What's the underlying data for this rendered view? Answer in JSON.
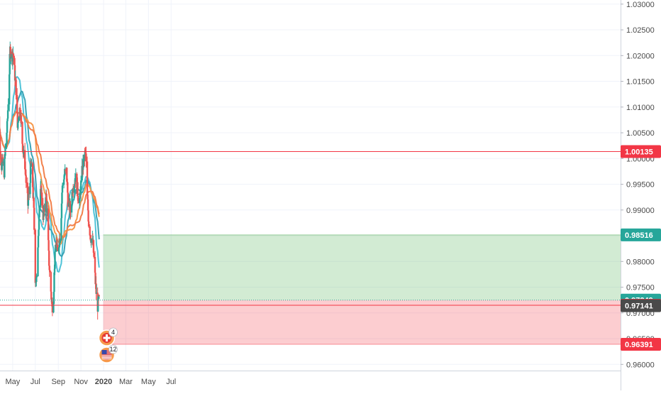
{
  "chart_data": {
    "type": "candlestick",
    "x_ticks": [
      "May",
      "Jul",
      "Sep",
      "Nov",
      "2020",
      "Mar",
      "May",
      "Jul"
    ],
    "y_ticks": [
      "1.03000",
      "1.02500",
      "1.02000",
      "1.01500",
      "1.01000",
      "1.00500",
      "1.00000",
      "0.99500",
      "0.99000",
      "0.98500",
      "0.98000",
      "0.97500",
      "0.97000",
      "0.96500",
      "0.96000"
    ],
    "ylim": [
      0.9588,
      1.0308
    ],
    "grid": true,
    "series": [
      {
        "kind": "ohlc",
        "x_start": "2019-03-19",
        "x_end": "2019-12-31",
        "path": [
          [
            0,
            1.003
          ],
          [
            4,
            1.0115
          ],
          [
            8,
            1.004
          ],
          [
            12,
            0.9985
          ],
          [
            16,
            0.999
          ],
          [
            20,
            0.9975
          ],
          [
            24,
            1.003
          ],
          [
            28,
            1.006
          ],
          [
            32,
            1.013
          ],
          [
            36,
            1.021
          ],
          [
            40,
            1.02
          ],
          [
            44,
            1.0205
          ],
          [
            48,
            1.017
          ],
          [
            52,
            1.0135
          ],
          [
            56,
            1.006
          ],
          [
            60,
            1.01
          ],
          [
            64,
            1.009
          ],
          [
            68,
            1.004
          ],
          [
            72,
            1.001
          ],
          [
            76,
            0.999
          ],
          [
            80,
            0.9945
          ],
          [
            84,
            0.991
          ],
          [
            88,
            0.994
          ],
          [
            92,
            0.999
          ],
          [
            96,
            0.9965
          ],
          [
            100,
            0.9895
          ],
          [
            104,
            0.977
          ],
          [
            108,
            0.976
          ],
          [
            112,
            0.986
          ],
          [
            116,
            0.992
          ],
          [
            120,
            0.994
          ],
          [
            124,
            0.989
          ],
          [
            128,
            0.989
          ],
          [
            132,
            0.9935
          ],
          [
            136,
            0.9895
          ],
          [
            140,
            0.981
          ],
          [
            144,
            0.9765
          ],
          [
            148,
            0.972
          ],
          [
            152,
            0.971
          ],
          [
            156,
            0.9795
          ],
          [
            160,
            0.9835
          ],
          [
            164,
            0.9815
          ],
          [
            168,
            0.984
          ],
          [
            172,
            0.9855
          ],
          [
            176,
            0.9935
          ],
          [
            180,
            0.9965
          ],
          [
            184,
            0.997
          ],
          [
            188,
            0.9975
          ],
          [
            192,
            0.992
          ],
          [
            196,
            0.9905
          ],
          [
            200,
            0.9895
          ],
          [
            204,
            0.9945
          ],
          [
            208,
            0.995
          ],
          [
            212,
            0.9965
          ],
          [
            216,
            0.9945
          ],
          [
            220,
            0.9925
          ],
          [
            224,
            0.992
          ],
          [
            228,
            0.996
          ],
          [
            232,
            0.9985
          ],
          [
            236,
            1.0005
          ],
          [
            240,
            1.0008
          ],
          [
            244,
            0.9925
          ],
          [
            248,
            0.9875
          ],
          [
            252,
            0.9855
          ],
          [
            256,
            0.984
          ],
          [
            260,
            0.983
          ],
          [
            264,
            0.978
          ],
          [
            268,
            0.974
          ],
          [
            272,
            0.9714
          ],
          [
            276,
            0.9725
          ]
        ]
      },
      {
        "name": "",
        "kind": "ma",
        "color": "#4fc3d8",
        "offset": 0.0015
      },
      {
        "name": "",
        "kind": "ma",
        "color": "#3ba4b6",
        "offset": 0.003
      },
      {
        "name": "",
        "kind": "ma",
        "color": "#f79a4c",
        "offset": 0.0045
      },
      {
        "name": "",
        "kind": "ma",
        "color": "#f2804b",
        "offset": 0.006
      }
    ],
    "horizontal_lines": [
      {
        "value": 1.00135,
        "color": "#f23645"
      },
      {
        "value": 0.97149,
        "color": "#f23645"
      },
      {
        "value": 0.97249,
        "color": "#26a69a",
        "dashed": true
      }
    ],
    "position": {
      "start": "2019-12-31",
      "end": "2020-06-20",
      "entry": 0.97249,
      "target": 0.98516,
      "stop": 0.96391
    },
    "price_labels": [
      {
        "text": "1.00135",
        "value": 1.00135,
        "bg": "#f23645",
        "fg": "#ffffff"
      },
      {
        "text": "0.98516",
        "value": 0.98516,
        "bg": "#26a69a",
        "fg": "#ffffff"
      },
      {
        "text": "0.97249",
        "value": 0.97249,
        "bg": "#26a69a",
        "fg": "#ffffff"
      },
      {
        "text": "0.97149",
        "value": 0.97149,
        "bg": "#f23645",
        "fg": "#ffffff"
      },
      {
        "text": "0.97141",
        "value": 0.97141,
        "bg": "#4a4a4a",
        "fg": "#ffffff"
      },
      {
        "text": "0.96391",
        "value": 0.96391,
        "bg": "#f23645",
        "fg": "#ffffff"
      }
    ],
    "event_markers": [
      {
        "icon": "swiss-flag-icon",
        "count": "4",
        "bg": "#f79a4c"
      },
      {
        "icon": "us-flag-icon",
        "count": "12",
        "bg": "#f79a4c"
      }
    ],
    "colors": {
      "up": "#26a69a",
      "down": "#ef5350",
      "grid": "#f0f3fa",
      "axis_text": "#4a4a4a"
    }
  }
}
